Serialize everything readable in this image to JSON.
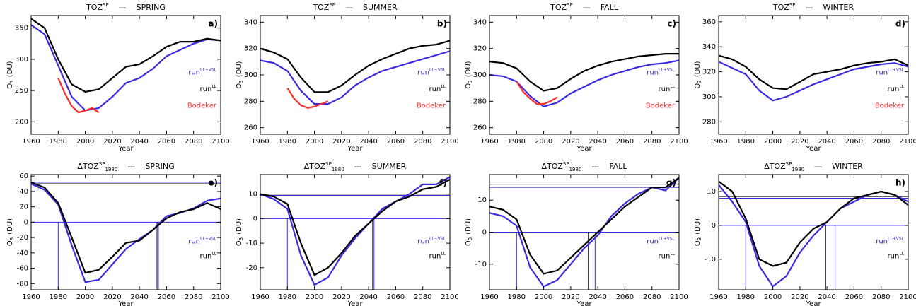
{
  "chart_data": [
    {
      "type": "line",
      "title": {
        "main": "TOZ",
        "sup": "SP",
        "sep": "—",
        "season": "SPRING"
      },
      "letter": "a)",
      "ylabel": {
        "main": "O",
        "sub": "3",
        "unit": "(DU)"
      },
      "xlabel": "Year",
      "x": [
        1960,
        1970,
        1980,
        1990,
        2000,
        2010,
        2020,
        2030,
        2040,
        2050,
        2060,
        2070,
        2080,
        2090,
        2100
      ],
      "xlim": [
        1960,
        2100
      ],
      "xticks": [
        1960,
        1980,
        2000,
        2020,
        2040,
        2060,
        2080,
        2100
      ],
      "ylim": [
        180,
        370
      ],
      "yticks": [
        200,
        250,
        300,
        350
      ],
      "series": [
        {
          "name": "run",
          "name_sup": "LL+VSL",
          "color": "#3b2be0",
          "values": [
            355,
            340,
            290,
            240,
            218,
            222,
            240,
            262,
            270,
            285,
            305,
            315,
            325,
            332,
            330
          ]
        },
        {
          "name": "run",
          "name_sup": "LL",
          "color": "#000000",
          "values": [
            365,
            350,
            300,
            260,
            248,
            252,
            270,
            288,
            292,
            305,
            320,
            328,
            328,
            333,
            330
          ]
        },
        {
          "name": "Bodeker",
          "color": "#ff2a2a",
          "x": [
            1980,
            1985,
            1990,
            1995,
            2000,
            2005,
            2010
          ],
          "values": [
            270,
            245,
            225,
            215,
            218,
            222,
            215
          ]
        }
      ]
    },
    {
      "type": "line",
      "title": {
        "main": "TOZ",
        "sup": "SP",
        "sep": "—",
        "season": "SUMMER"
      },
      "letter": "b)",
      "ylabel": {
        "main": "O",
        "sub": "3",
        "unit": "(DU)"
      },
      "xlabel": "Year",
      "x": [
        1960,
        1970,
        1980,
        1990,
        2000,
        2010,
        2020,
        2030,
        2040,
        2050,
        2060,
        2070,
        2080,
        2090,
        2100
      ],
      "xlim": [
        1960,
        2100
      ],
      "xticks": [
        1960,
        1980,
        2000,
        2020,
        2040,
        2060,
        2080,
        2100
      ],
      "ylim": [
        255,
        345
      ],
      "yticks": [
        260,
        280,
        300,
        320,
        340
      ],
      "series": [
        {
          "name": "run",
          "name_sup": "LL+VSL",
          "color": "#3b2be0",
          "values": [
            311,
            309,
            303,
            288,
            278,
            278,
            283,
            292,
            298,
            303,
            306,
            309,
            312,
            315,
            318
          ]
        },
        {
          "name": "run",
          "name_sup": "LL",
          "color": "#000000",
          "values": [
            320,
            317,
            312,
            298,
            287,
            287,
            292,
            300,
            307,
            312,
            316,
            320,
            322,
            323,
            326
          ]
        },
        {
          "name": "Bodeker",
          "color": "#ff2a2a",
          "x": [
            1980,
            1985,
            1990,
            1995,
            2000,
            2005,
            2010
          ],
          "values": [
            290,
            282,
            277,
            275,
            276,
            278,
            280
          ]
        }
      ]
    },
    {
      "type": "line",
      "title": {
        "main": "TOZ",
        "sup": "SP",
        "sep": "—",
        "season": "FALL"
      },
      "letter": "c)",
      "ylabel": {
        "main": "O",
        "sub": "3",
        "unit": "(DU)"
      },
      "xlabel": "Year",
      "x": [
        1960,
        1970,
        1980,
        1990,
        2000,
        2010,
        2020,
        2030,
        2040,
        2050,
        2060,
        2070,
        2080,
        2090,
        2100
      ],
      "xlim": [
        1960,
        2100
      ],
      "xticks": [
        1960,
        1980,
        2000,
        2020,
        2040,
        2060,
        2080,
        2100
      ],
      "ylim": [
        255,
        345
      ],
      "yticks": [
        260,
        280,
        300,
        320,
        340
      ],
      "series": [
        {
          "name": "run",
          "name_sup": "LL+VSL",
          "color": "#3b2be0",
          "values": [
            300,
            299,
            295,
            284,
            276,
            279,
            286,
            291,
            296,
            300,
            303,
            306,
            308,
            309,
            311
          ]
        },
        {
          "name": "run",
          "name_sup": "LL",
          "color": "#000000",
          "values": [
            310,
            309,
            305,
            295,
            288,
            290,
            297,
            303,
            307,
            310,
            312,
            314,
            315,
            316,
            316
          ]
        },
        {
          "name": "Bodeker",
          "color": "#ff2a2a",
          "x": [
            1980,
            1985,
            1990,
            1995,
            2000,
            2005,
            2010
          ],
          "values": [
            295,
            287,
            282,
            278,
            278,
            280,
            283
          ]
        }
      ]
    },
    {
      "type": "line",
      "title": {
        "main": "TOZ",
        "sup": "SP",
        "sep": "—",
        "season": "WINTER"
      },
      "letter": "d)",
      "ylabel": {
        "main": "O",
        "sub": "3",
        "unit": "(DU)"
      },
      "xlabel": "Year",
      "x": [
        1960,
        1970,
        1980,
        1990,
        2000,
        2010,
        2020,
        2030,
        2040,
        2050,
        2060,
        2070,
        2080,
        2090,
        2100
      ],
      "xlim": [
        1960,
        2100
      ],
      "xticks": [
        1960,
        1980,
        2000,
        2020,
        2040,
        2060,
        2080,
        2100
      ],
      "ylim": [
        270,
        365
      ],
      "yticks": [
        280,
        300,
        320,
        340,
        360
      ],
      "series": [
        {
          "name": "run",
          "name_sup": "LL+VSL",
          "color": "#3b2be0",
          "values": [
            328,
            323,
            318,
            305,
            297,
            300,
            305,
            310,
            314,
            318,
            322,
            324,
            326,
            327,
            324
          ]
        },
        {
          "name": "run",
          "name_sup": "LL",
          "color": "#000000",
          "values": [
            333,
            330,
            324,
            314,
            307,
            306,
            312,
            318,
            320,
            322,
            325,
            327,
            328,
            330,
            325
          ]
        },
        {
          "name": "Bodeker",
          "color": "#ff2a2a",
          "x": [],
          "values": []
        }
      ]
    },
    {
      "type": "line",
      "title": {
        "main": "ΔTOZ",
        "sup": "SP",
        "sub": "1980",
        "sep": "—",
        "season": "SPRING"
      },
      "letter": "e)",
      "ylabel": {
        "main": "O",
        "sub": "3",
        "unit": "(DU)"
      },
      "xlabel": "Year",
      "x": [
        1960,
        1970,
        1980,
        1990,
        2000,
        2010,
        2020,
        2030,
        2040,
        2050,
        2060,
        2070,
        2080,
        2090,
        2100
      ],
      "xlim": [
        1960,
        2100
      ],
      "xticks": [
        1960,
        1980,
        2000,
        2020,
        2040,
        2060,
        2080,
        2100
      ],
      "ylim": [
        -88,
        62
      ],
      "yticks": [
        -80,
        -60,
        -40,
        -20,
        0,
        20,
        40,
        60
      ],
      "hlines": [
        {
          "value": 0,
          "color": "#3b2be0"
        },
        {
          "value": 52,
          "color": "#3b2be0"
        },
        {
          "value": 50,
          "color": "#000000"
        }
      ],
      "vlines": [
        {
          "value": 1980,
          "color": "#3b2be0"
        },
        {
          "value": 2054,
          "color": "#3b2be0"
        },
        {
          "value": 2053,
          "color": "#000000"
        }
      ],
      "series": [
        {
          "name": "run",
          "name_sup": "LL+VSL",
          "color": "#3b2be0",
          "values": [
            50,
            42,
            23,
            -30,
            -78,
            -75,
            -55,
            -35,
            -22,
            -10,
            8,
            12,
            18,
            28,
            31
          ]
        },
        {
          "name": "run",
          "name_sup": "LL",
          "color": "#000000",
          "values": [
            52,
            45,
            25,
            -20,
            -66,
            -62,
            -45,
            -27,
            -24,
            -10,
            5,
            13,
            17,
            25,
            17
          ]
        }
      ]
    },
    {
      "type": "line",
      "title": {
        "main": "ΔTOZ",
        "sup": "SP",
        "sub": "1980",
        "sep": "—",
        "season": "SUMMER"
      },
      "letter": "f)",
      "ylabel": {
        "main": "O",
        "sub": "3",
        "unit": "(DU)"
      },
      "xlabel": "Year",
      "x": [
        1960,
        1970,
        1980,
        1990,
        2000,
        2010,
        2020,
        2030,
        2040,
        2050,
        2060,
        2070,
        2080,
        2090,
        2100
      ],
      "xlim": [
        1960,
        2100
      ],
      "xticks": [
        1960,
        1980,
        2000,
        2020,
        2040,
        2060,
        2080,
        2100
      ],
      "ylim": [
        -29,
        18
      ],
      "yticks": [
        -20,
        -10,
        0,
        10
      ],
      "hlines": [
        {
          "value": 0,
          "color": "#3b2be0"
        },
        {
          "value": 10,
          "color": "#000000"
        },
        {
          "value": 9.5,
          "color": "#3b2be0"
        }
      ],
      "vlines": [
        {
          "value": 1980,
          "color": "#3b2be0"
        },
        {
          "value": 2043,
          "color": "#000000"
        },
        {
          "value": 2044,
          "color": "#3b2be0"
        }
      ],
      "series": [
        {
          "name": "run",
          "name_sup": "LL+VSL",
          "color": "#3b2be0",
          "values": [
            10,
            8,
            4,
            -15,
            -27,
            -24,
            -15,
            -8,
            -2,
            4,
            7,
            10,
            14,
            14,
            17
          ]
        },
        {
          "name": "run",
          "name_sup": "LL",
          "color": "#000000",
          "values": [
            10,
            9,
            6,
            -10,
            -23,
            -20,
            -14,
            -7,
            -2,
            3,
            7,
            9,
            12,
            13,
            16
          ]
        }
      ]
    },
    {
      "type": "line",
      "title": {
        "main": "ΔTOZ",
        "sup": "SP",
        "sub": "1980",
        "sep": "—",
        "season": "FALL"
      },
      "letter": "g)",
      "ylabel": {
        "main": "O",
        "sub": "3",
        "unit": "(DU)"
      },
      "xlabel": "Year",
      "x": [
        1960,
        1970,
        1980,
        1990,
        2000,
        2010,
        2020,
        2030,
        2040,
        2050,
        2060,
        2070,
        2080,
        2090,
        2100
      ],
      "xlim": [
        1960,
        2100
      ],
      "xticks": [
        1960,
        1980,
        2000,
        2020,
        2040,
        2060,
        2080,
        2100
      ],
      "ylim": [
        -18,
        18
      ],
      "yticks": [
        -10,
        0,
        10
      ],
      "hlines": [
        {
          "value": 0,
          "color": "#3b2be0"
        },
        {
          "value": 15,
          "color": "#000000"
        },
        {
          "value": 14,
          "color": "#3b2be0"
        }
      ],
      "vlines": [
        {
          "value": 1980,
          "color": "#3b2be0"
        },
        {
          "value": 2033,
          "color": "#000000"
        },
        {
          "value": 2038,
          "color": "#3b2be0"
        }
      ],
      "series": [
        {
          "name": "run",
          "name_sup": "LL+VSL",
          "color": "#3b2be0",
          "values": [
            6,
            5,
            2,
            -11,
            -17,
            -15,
            -10,
            -5,
            -1,
            5,
            9,
            12,
            14,
            13,
            17
          ]
        },
        {
          "name": "run",
          "name_sup": "LL",
          "color": "#000000",
          "values": [
            8,
            7,
            4,
            -7,
            -13,
            -12,
            -8,
            -4,
            0,
            4,
            8,
            11,
            14,
            14,
            17
          ]
        }
      ]
    },
    {
      "type": "line",
      "title": {
        "main": "ΔTOZ",
        "sup": "SP",
        "sub": "1980",
        "sep": "—",
        "season": "WINTER"
      },
      "letter": "h)",
      "ylabel": {
        "main": "O",
        "sub": "3",
        "unit": "(DU)"
      },
      "xlabel": "Year",
      "x": [
        1960,
        1970,
        1980,
        1990,
        2000,
        2010,
        2020,
        2030,
        2040,
        2050,
        2060,
        2070,
        2080,
        2090,
        2100
      ],
      "xlim": [
        1960,
        2100
      ],
      "xticks": [
        1960,
        1980,
        2000,
        2020,
        2040,
        2060,
        2080,
        2100
      ],
      "ylim": [
        -19,
        15
      ],
      "yticks": [
        -10,
        0,
        10
      ],
      "hlines": [
        {
          "value": 0,
          "color": "#3b2be0"
        },
        {
          "value": 8.5,
          "color": "#000000"
        },
        {
          "value": 8,
          "color": "#3b2be0"
        }
      ],
      "vlines": [
        {
          "value": 1980,
          "color": "#3b2be0"
        },
        {
          "value": 2039,
          "color": "#000000"
        },
        {
          "value": 2046,
          "color": "#3b2be0"
        }
      ],
      "series": [
        {
          "name": "run",
          "name_sup": "LL+VSL",
          "color": "#3b2be0",
          "values": [
            12,
            7,
            1,
            -12,
            -18,
            -15,
            -8,
            -3,
            1,
            5,
            7,
            9,
            10,
            9,
            7
          ]
        },
        {
          "name": "run",
          "name_sup": "LL",
          "color": "#000000",
          "values": [
            13,
            10,
            2,
            -10,
            -12,
            -11,
            -5,
            -1,
            1,
            5,
            8,
            9,
            10,
            9,
            6
          ]
        }
      ]
    }
  ]
}
